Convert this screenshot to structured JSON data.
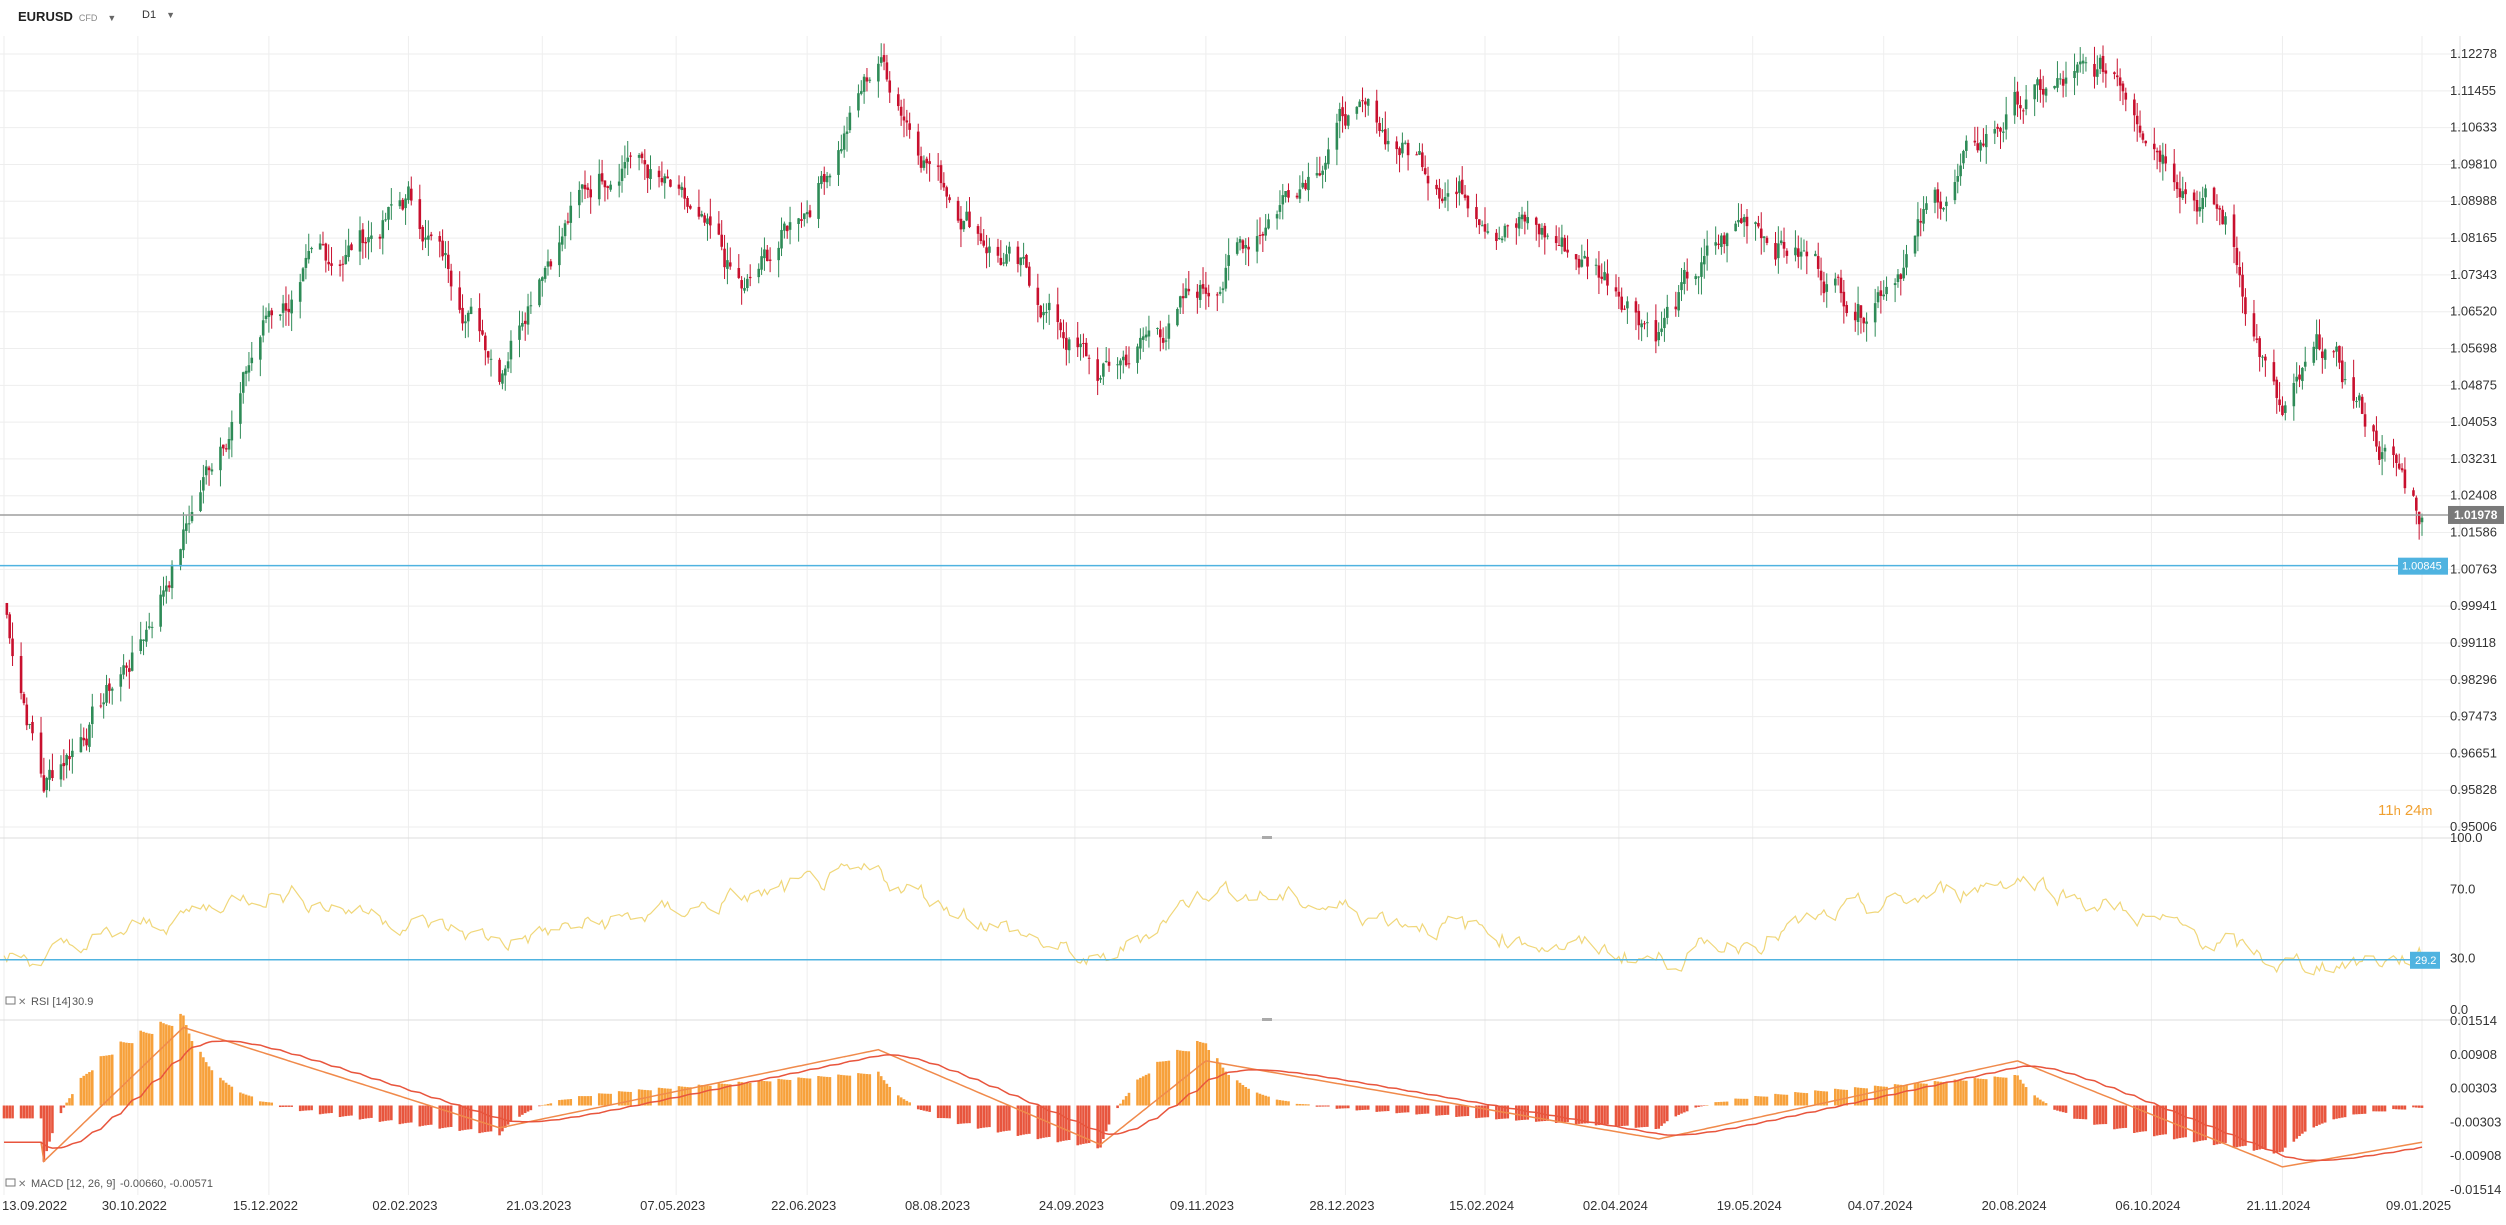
{
  "toolbar": {
    "symbol": "EURUSD",
    "symbol_type": "CFD",
    "timeframe": "D1"
  },
  "colors": {
    "up": "#2e8b57",
    "down": "#c8102e",
    "grid": "#eeeeee",
    "price_line": "#9e9e9e",
    "level_line": "#4fb3e0",
    "rsi_line": "#f0d77a",
    "macd_pos": "#f7a13b",
    "macd_neg": "#e8553d",
    "macd_line": "#f08a4b",
    "signal_line": "#e8553d",
    "timer": "#f0a030"
  },
  "price_axis": [
    "1.12278",
    "1.11455",
    "1.10633",
    "1.09810",
    "1.08988",
    "1.08165",
    "1.07343",
    "1.06520",
    "1.05698",
    "1.04875",
    "1.04053",
    "1.03231",
    "1.02408",
    "1.01586",
    "1.00763",
    "0.99941",
    "0.99118",
    "0.98296",
    "0.97473",
    "0.96651",
    "0.95828",
    "0.95006"
  ],
  "rsi_axis": [
    "100.0",
    "70.0",
    "30.0",
    "0.0"
  ],
  "macd_axis": [
    "0.01514",
    "0.00908",
    "0.00303",
    "-0.00303",
    "-0.00908",
    "-0.01514"
  ],
  "date_axis": [
    "13.09.2022",
    "30.10.2022",
    "15.12.2022",
    "02.02.2023",
    "21.03.2023",
    "07.05.2023",
    "22.06.2023",
    "08.08.2023",
    "24.09.2023",
    "09.11.2023",
    "28.12.2023",
    "15.02.2024",
    "02.04.2024",
    "19.05.2024",
    "04.07.2024",
    "20.08.2024",
    "06.10.2024",
    "21.11.2024",
    "09.01.2025"
  ],
  "current_price": "1.01978",
  "level_price": "1.00845",
  "rsi_level": "29.2",
  "timer": {
    "hours": "11",
    "h": "h",
    "mins": "24",
    "m": "m"
  },
  "rsi_legend": {
    "name": "RSI [14]",
    "value": "30.9"
  },
  "macd_legend": {
    "name": "MACD [12, 26, 9]",
    "values": "-0.00660, -0.00571"
  },
  "chart_data": [
    {
      "type": "candlestick",
      "title": "EURUSD D1",
      "x_range": [
        "13.09.2022",
        "09.01.2025"
      ],
      "ylim": [
        0.95006,
        1.12278
      ],
      "grid": true,
      "key_points": [
        {
          "date": "13.09.2022",
          "close": 1.0
        },
        {
          "date": "27.09.2022",
          "close": 0.96
        },
        {
          "date": "30.10.2022",
          "close": 0.99
        },
        {
          "date": "15.12.2022",
          "close": 1.065
        },
        {
          "date": "02.02.2023",
          "close": 1.09
        },
        {
          "date": "06.03.2023",
          "close": 1.055
        },
        {
          "date": "21.03.2023",
          "close": 1.08
        },
        {
          "date": "20.04.2023",
          "close": 1.104
        },
        {
          "date": "31.05.2023",
          "close": 1.067
        },
        {
          "date": "22.06.2023",
          "close": 1.09
        },
        {
          "date": "17.07.2023",
          "close": 1.122
        },
        {
          "date": "08.08.2023",
          "close": 1.096
        },
        {
          "date": "03.10.2023",
          "close": 1.05
        },
        {
          "date": "09.11.2023",
          "close": 1.07
        },
        {
          "date": "28.12.2023",
          "close": 1.11
        },
        {
          "date": "02.04.2024",
          "close": 1.072
        },
        {
          "date": "16.04.2024",
          "close": 1.063
        },
        {
          "date": "19.05.2024",
          "close": 1.087
        },
        {
          "date": "26.06.2024",
          "close": 1.068
        },
        {
          "date": "20.08.2024",
          "close": 1.112
        },
        {
          "date": "25.09.2024",
          "close": 1.118
        },
        {
          "date": "01.11.2024",
          "close": 1.085
        },
        {
          "date": "21.11.2024",
          "close": 1.04
        },
        {
          "date": "06.12.2024",
          "close": 1.056
        },
        {
          "date": "09.01.2025",
          "close": 1.0198
        }
      ],
      "horizontal_lines": [
        {
          "label": "current price",
          "value": 1.01978
        },
        {
          "label": "level",
          "value": 1.00845
        }
      ]
    },
    {
      "type": "line",
      "title": "RSI [14]",
      "ylim": [
        0,
        100
      ],
      "last_value": 30.9,
      "horizontal_lines": [
        {
          "value": 29.2
        }
      ],
      "key_points": [
        {
          "date": "27.09.2022",
          "value": 30
        },
        {
          "date": "15.12.2022",
          "value": 70
        },
        {
          "date": "06.03.2023",
          "value": 40
        },
        {
          "date": "17.07.2023",
          "value": 78
        },
        {
          "date": "03.10.2023",
          "value": 25
        },
        {
          "date": "09.11.2023",
          "value": 72
        },
        {
          "date": "16.04.2024",
          "value": 29
        },
        {
          "date": "20.08.2024",
          "value": 78
        },
        {
          "date": "21.11.2024",
          "value": 26
        },
        {
          "date": "09.01.2025",
          "value": 30.9
        }
      ]
    },
    {
      "type": "bar",
      "title": "MACD [12, 26, 9]",
      "ylim": [
        -0.01514,
        0.01514
      ],
      "last_values": {
        "macd": -0.0066,
        "signal": -0.00571
      },
      "key_points": [
        {
          "date": "27.09.2022",
          "macd": -0.01
        },
        {
          "date": "15.11.2022",
          "macd": 0.014
        },
        {
          "date": "06.03.2023",
          "macd": -0.004
        },
        {
          "date": "17.07.2023",
          "macd": 0.01
        },
        {
          "date": "03.10.2023",
          "macd": -0.007
        },
        {
          "date": "09.11.2023",
          "macd": 0.008
        },
        {
          "date": "16.04.2024",
          "macd": -0.006
        },
        {
          "date": "20.08.2024",
          "macd": 0.008
        },
        {
          "date": "21.11.2024",
          "macd": -0.011
        },
        {
          "date": "09.01.2025",
          "macd": -0.0066
        }
      ]
    }
  ]
}
